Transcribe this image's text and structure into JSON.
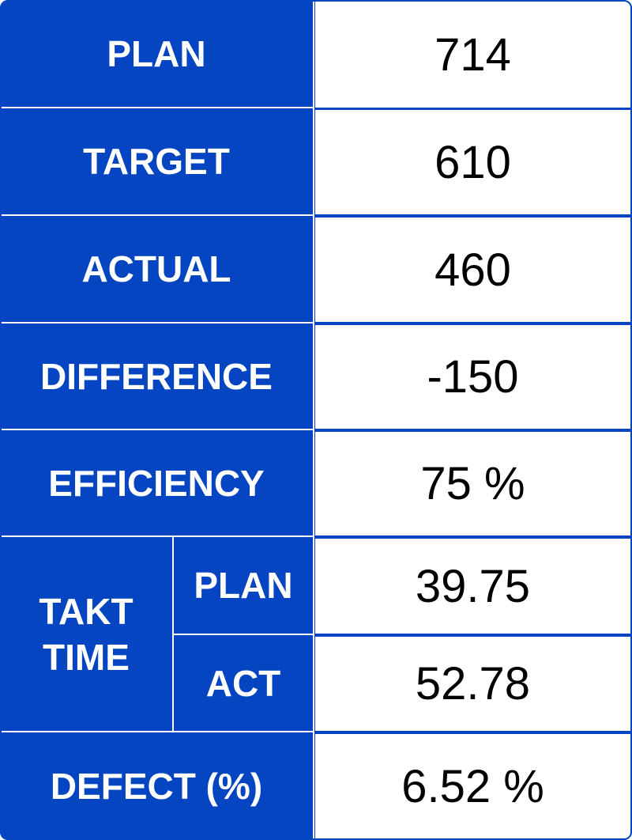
{
  "board": {
    "rows": [
      {
        "label": "PLAN",
        "value": "714"
      },
      {
        "label": "TARGET",
        "value": "610"
      },
      {
        "label": "ACTUAL",
        "value": "460"
      },
      {
        "label": "DIFFERENCE",
        "value": "-150"
      },
      {
        "label": "EFFICIENCY",
        "value": "75 %"
      }
    ],
    "takt": {
      "label_line1": "TAKT",
      "label_line2": "TIME",
      "plan_label": "PLAN",
      "plan_value": "39.75",
      "act_label": "ACT",
      "act_value": "52.78"
    },
    "defect": {
      "label": "DEFECT (%)",
      "value": "6.52 %"
    }
  },
  "colors": {
    "label_bg": "#0545c1",
    "label_text": "#ffffff",
    "value_text": "#000000"
  }
}
